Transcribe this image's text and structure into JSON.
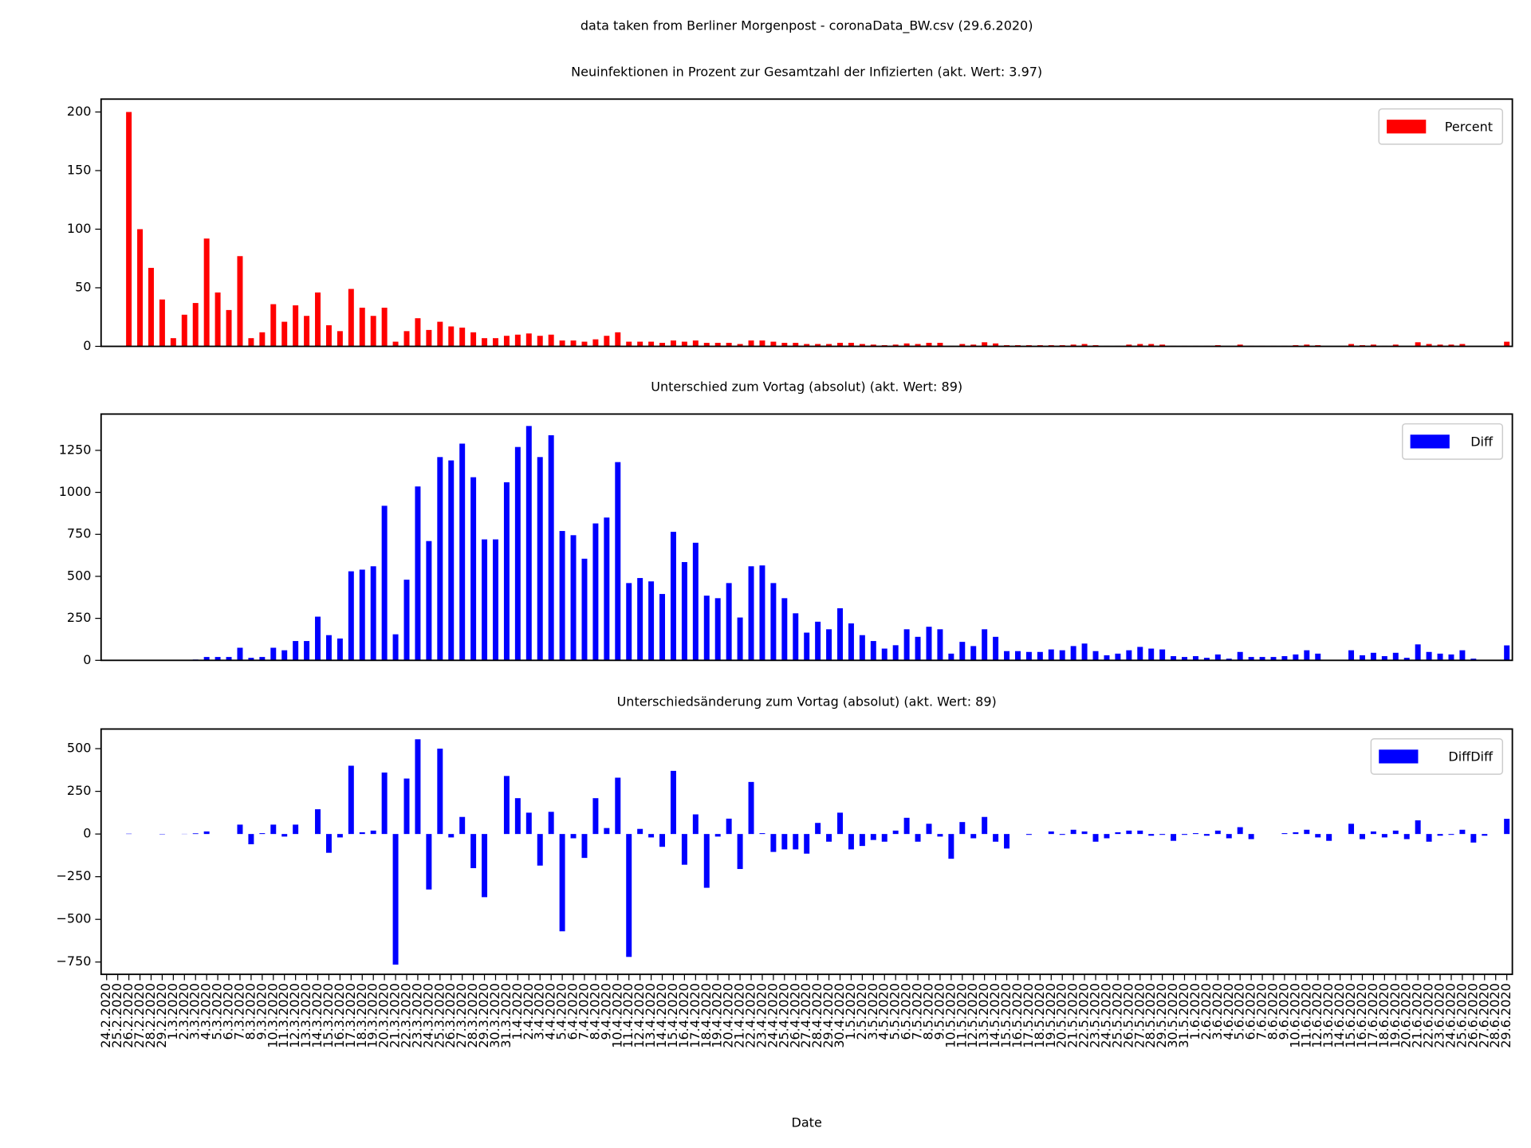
{
  "suptitle": "data taken from Berliner Morgenpost - coronaData_BW.csv (29.6.2020)",
  "chart_data": [
    {
      "type": "bar",
      "title": "Neuinfektionen in Prozent zur Gesamtzahl der Infizierten (akt. Wert: 3.97)",
      "series": [
        {
          "name": "Percent",
          "color": "#ff0000",
          "values": [
            0,
            0,
            200,
            100,
            67,
            40,
            7,
            27,
            37,
            92,
            46,
            31,
            77,
            7,
            12,
            36,
            21,
            35,
            26,
            46,
            18,
            13,
            49,
            33,
            26,
            33,
            4,
            13,
            24,
            14,
            21,
            17,
            16,
            12,
            7,
            7,
            9,
            10,
            11,
            9,
            10,
            5,
            5,
            4,
            6,
            9,
            12,
            4,
            4,
            4,
            3,
            5,
            4,
            5,
            3,
            3,
            3,
            2,
            5,
            5,
            4,
            3,
            3,
            2,
            2,
            2,
            3,
            3,
            2,
            1.5,
            1,
            1.5,
            2.5,
            2,
            3,
            3,
            0.5,
            2,
            1.5,
            3.5,
            2.5,
            1,
            1,
            1,
            1,
            1,
            1,
            1.5,
            2,
            1,
            0.5,
            0.5,
            1.5,
            2,
            2,
            1.5,
            0.5,
            0.5,
            0.5,
            0.5,
            1,
            0.3,
            1.5,
            0.5,
            0.5,
            0.5,
            0.5,
            1,
            1.5,
            1,
            0,
            0,
            2,
            1,
            1.5,
            0.5,
            1.5,
            0,
            3.5,
            2,
            1.5,
            1.5,
            2,
            0,
            0,
            0,
            3.97
          ]
        }
      ],
      "ylim": [
        0,
        211
      ],
      "yticks": [
        0,
        50,
        100,
        150,
        200
      ],
      "legend": "upper right"
    },
    {
      "type": "bar",
      "title": "Unterschied zum Vortag (absolut) (akt. Wert: 89)",
      "series": [
        {
          "name": "Diff",
          "color": "#0000ff",
          "values": [
            0,
            0,
            2,
            2,
            2,
            0,
            0,
            1,
            5,
            20,
            20,
            20,
            75,
            15,
            20,
            75,
            60,
            115,
            115,
            260,
            150,
            130,
            530,
            540,
            560,
            920,
            155,
            480,
            1035,
            710,
            1210,
            1190,
            1290,
            1090,
            720,
            720,
            1060,
            1270,
            1395,
            1210,
            1340,
            770,
            745,
            605,
            815,
            850,
            1180,
            460,
            490,
            470,
            395,
            765,
            585,
            700,
            385,
            370,
            460,
            255,
            560,
            565,
            460,
            370,
            280,
            165,
            230,
            185,
            310,
            220,
            150,
            115,
            70,
            90,
            185,
            140,
            200,
            185,
            40,
            110,
            85,
            185,
            140,
            55,
            55,
            50,
            50,
            65,
            60,
            85,
            100,
            55,
            30,
            40,
            60,
            80,
            70,
            65,
            25,
            20,
            25,
            15,
            35,
            10,
            50,
            20,
            20,
            20,
            25,
            35,
            60,
            40,
            0,
            0,
            60,
            30,
            45,
            25,
            45,
            15,
            95,
            50,
            40,
            35,
            60,
            10,
            0,
            0,
            89
          ]
        }
      ],
      "ylim": [
        0,
        1466
      ],
      "yticks": [
        0,
        250,
        500,
        750,
        1000,
        1250
      ],
      "legend": "upper right"
    },
    {
      "type": "bar",
      "title": "Unterschiedsänderung zum Vortag (absolut) (akt. Wert: 89)",
      "series": [
        {
          "name": "DiffDiff",
          "color": "#0000ff",
          "values": [
            0,
            0,
            2,
            0,
            0,
            -2,
            0,
            1,
            4,
            15,
            0,
            0,
            55,
            -60,
            5,
            55,
            -15,
            55,
            0,
            145,
            -110,
            -20,
            400,
            10,
            20,
            360,
            -765,
            325,
            555,
            -325,
            500,
            -20,
            100,
            -200,
            -370,
            0,
            340,
            210,
            125,
            -185,
            130,
            -570,
            -25,
            -140,
            210,
            35,
            330,
            -720,
            30,
            -20,
            -75,
            370,
            -180,
            115,
            -315,
            -15,
            90,
            -205,
            305,
            5,
            -105,
            -90,
            -90,
            -115,
            65,
            -45,
            125,
            -90,
            -70,
            -35,
            -45,
            20,
            95,
            -45,
            60,
            -15,
            -145,
            70,
            -25,
            100,
            -45,
            -85,
            0,
            -5,
            0,
            15,
            -5,
            25,
            15,
            -45,
            -25,
            10,
            20,
            20,
            -10,
            -5,
            -40,
            -5,
            5,
            -10,
            20,
            -25,
            40,
            -30,
            0,
            0,
            5,
            10,
            25,
            -20,
            -40,
            0,
            60,
            -30,
            15,
            -20,
            20,
            -30,
            80,
            -45,
            -10,
            -5,
            25,
            -50,
            -10,
            0,
            89
          ]
        }
      ],
      "ylim": [
        -822,
        615
      ],
      "yticks": [
        {
          "value": -750,
          "label": "−750"
        },
        {
          "value": -500,
          "label": "−500"
        },
        {
          "value": -250,
          "label": "−250"
        },
        0,
        250,
        500
      ],
      "legend": "upper right",
      "xlabel": "Date",
      "categories": [
        "24.2.2020",
        "25.2.2020",
        "26.2.2020",
        "27.2.2020",
        "28.2.2020",
        "29.2.2020",
        "1.3.2020",
        "2.3.2020",
        "3.3.2020",
        "4.3.2020",
        "5.3.2020",
        "6.3.2020",
        "7.3.2020",
        "8.3.2020",
        "9.3.2020",
        "10.3.2020",
        "11.3.2020",
        "12.3.2020",
        "13.3.2020",
        "14.3.2020",
        "15.3.2020",
        "16.3.2020",
        "17.3.2020",
        "18.3.2020",
        "19.3.2020",
        "20.3.2020",
        "21.3.2020",
        "22.3.2020",
        "23.3.2020",
        "24.3.2020",
        "25.3.2020",
        "26.3.2020",
        "27.3.2020",
        "28.3.2020",
        "29.3.2020",
        "30.3.2020",
        "31.3.2020",
        "1.4.2020",
        "2.4.2020",
        "3.4.2020",
        "4.4.2020",
        "5.4.2020",
        "6.4.2020",
        "7.4.2020",
        "8.4.2020",
        "9.4.2020",
        "10.4.2020",
        "11.4.2020",
        "12.4.2020",
        "13.4.2020",
        "14.4.2020",
        "15.4.2020",
        "16.4.2020",
        "17.4.2020",
        "18.4.2020",
        "19.4.2020",
        "20.4.2020",
        "21.4.2020",
        "22.4.2020",
        "23.4.2020",
        "24.4.2020",
        "25.4.2020",
        "26.4.2020",
        "27.4.2020",
        "28.4.2020",
        "29.4.2020",
        "30.4.2020",
        "1.5.2020",
        "2.5.2020",
        "3.5.2020",
        "4.5.2020",
        "5.5.2020",
        "6.5.2020",
        "7.5.2020",
        "8.5.2020",
        "9.5.2020",
        "10.5.2020",
        "11.5.2020",
        "12.5.2020",
        "13.5.2020",
        "14.5.2020",
        "15.5.2020",
        "16.5.2020",
        "17.5.2020",
        "18.5.2020",
        "19.5.2020",
        "20.5.2020",
        "21.5.2020",
        "22.5.2020",
        "23.5.2020",
        "24.5.2020",
        "25.5.2020",
        "26.5.2020",
        "27.5.2020",
        "28.5.2020",
        "29.5.2020",
        "30.5.2020",
        "31.5.2020",
        "1.6.2020",
        "2.6.2020",
        "3.6.2020",
        "4.6.2020",
        "5.6.2020",
        "6.6.2020",
        "7.6.2020",
        "8.6.2020",
        "9.6.2020",
        "10.6.2020",
        "11.6.2020",
        "12.6.2020",
        "13.6.2020",
        "14.6.2020",
        "15.6.2020",
        "16.6.2020",
        "17.6.2020",
        "18.6.2020",
        "19.6.2020",
        "20.6.2020",
        "21.6.2020",
        "22.6.2020",
        "23.6.2020",
        "24.6.2020",
        "25.6.2020",
        "26.6.2020",
        "27.6.2020",
        "28.6.2020",
        "29.6.2020"
      ]
    }
  ]
}
